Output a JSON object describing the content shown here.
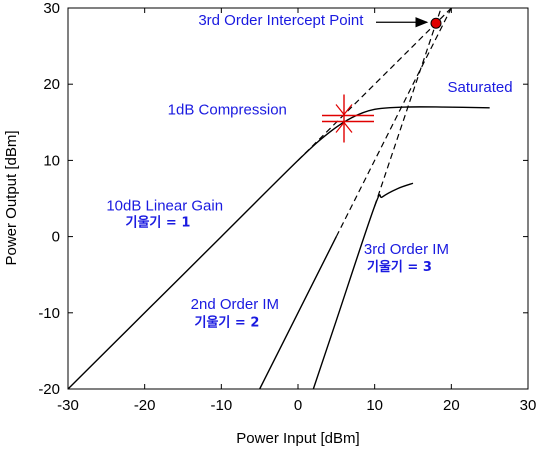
{
  "chart_data": {
    "type": "line",
    "title": "",
    "xlabel": "Power Input [dBm]",
    "ylabel": "Power Output [dBm]",
    "xlim": [
      -30,
      30
    ],
    "ylim": [
      -20,
      30
    ],
    "xticks": [
      -30,
      -20,
      -10,
      0,
      10,
      20,
      30
    ],
    "yticks": [
      -20,
      -10,
      0,
      10,
      20,
      30
    ],
    "grid": false,
    "colors": {
      "curve": "#000000",
      "annotation": "#1a1ae0",
      "marker": "#e00000"
    },
    "series": [
      {
        "key": "fundamental",
        "points": [
          [
            -30,
            -20
          ],
          [
            -20,
            -10
          ],
          [
            -10,
            0
          ],
          [
            0,
            10
          ],
          [
            4,
            13.6
          ],
          [
            7,
            15.6
          ],
          [
            10,
            16.7
          ],
          [
            14,
            17
          ],
          [
            19,
            17
          ],
          [
            25,
            16.9
          ]
        ]
      },
      {
        "key": "fundamental-extrapolated",
        "dashed": true,
        "points": [
          [
            0,
            10
          ],
          [
            20,
            30
          ]
        ]
      },
      {
        "key": "im2",
        "points": [
          [
            -5,
            -20
          ],
          [
            0,
            -10
          ],
          [
            5,
            0
          ]
        ]
      },
      {
        "key": "im2-extrapolated",
        "dashed": true,
        "points": [
          [
            5,
            0
          ],
          [
            10,
            10
          ],
          [
            15,
            20
          ],
          [
            20,
            30
          ]
        ]
      },
      {
        "key": "im3",
        "points": [
          [
            2,
            -20
          ],
          [
            5,
            -11
          ],
          [
            10,
            4
          ],
          [
            11,
            5.2
          ],
          [
            13,
            6.3
          ],
          [
            15,
            7
          ]
        ]
      },
      {
        "key": "im3-extrapolated",
        "dashed": true,
        "points": [
          [
            10,
            4
          ],
          [
            18.67,
            30
          ]
        ]
      }
    ],
    "intercept_point": {
      "x": 18,
      "y": 28
    },
    "compression_point": {
      "x": 6,
      "y": 15.5
    },
    "annotations": [
      {
        "key": "ip3-label",
        "text": "3rd Order Intercept Point",
        "x": -13,
        "y": 27.8
      },
      {
        "key": "compression-label",
        "text": "1dB Compression",
        "x": -17,
        "y": 16
      },
      {
        "key": "saturated-label",
        "text": "Saturated",
        "x": 19.5,
        "y": 19
      },
      {
        "key": "linear-gain-label",
        "text": "10dB Linear Gain",
        "x": -25,
        "y": 3.4
      },
      {
        "key": "linear-gain-slope",
        "text": "기울기 = 1",
        "x": -22.5,
        "y": 1.3,
        "bold": true
      },
      {
        "key": "im2-label",
        "text": "2nd Order IM",
        "x": -14,
        "y": -9.5
      },
      {
        "key": "im2-slope",
        "text": "기울기 = 2",
        "x": -13.5,
        "y": -11.8,
        "bold": true
      },
      {
        "key": "im3-label",
        "text": "3rd Order IM",
        "x": 8.6,
        "y": -2.3
      },
      {
        "key": "im3-slope",
        "text": "기울기 = 3",
        "x": 9,
        "y": -4.5,
        "bold": true
      }
    ]
  }
}
